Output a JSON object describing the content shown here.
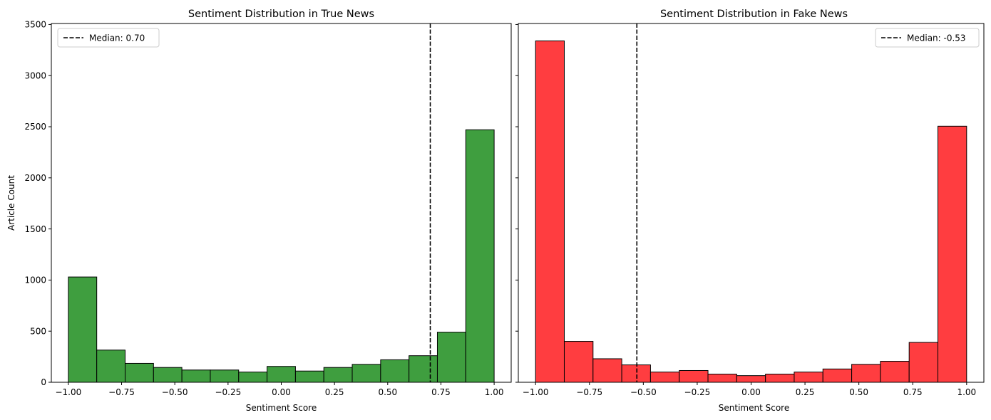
{
  "chart_data": [
    {
      "type": "bar",
      "title": "Sentiment Distribution in True News",
      "xlabel": "Sentiment Score",
      "ylabel": "Article Count",
      "xlim": [
        -1.08,
        1.08
      ],
      "ylim": [
        0,
        3510
      ],
      "bin_edges": [
        -1.0,
        -0.8667,
        -0.7333,
        -0.6,
        -0.4667,
        -0.3333,
        -0.2,
        -0.0667,
        0.0667,
        0.2,
        0.3333,
        0.4667,
        0.6,
        0.7333,
        0.8667,
        1.0
      ],
      "values": [
        1030,
        315,
        185,
        145,
        120,
        120,
        100,
        155,
        110,
        145,
        175,
        220,
        260,
        490,
        2470
      ],
      "bar_color": "#3f9e3f",
      "median": 0.7,
      "legend": {
        "label": "Median: 0.70",
        "position": "upper-left"
      },
      "xticks": [
        -1.0,
        -0.75,
        -0.5,
        -0.25,
        0.0,
        0.25,
        0.5,
        0.75,
        1.0
      ],
      "xtick_labels": [
        "−1.00",
        "−0.75",
        "−0.50",
        "−0.25",
        "0.00",
        "0.25",
        "0.50",
        "0.75",
        "1.00"
      ],
      "yticks": [
        0,
        500,
        1000,
        1500,
        2000,
        2500,
        3000,
        3500
      ],
      "ytick_labels": [
        "0",
        "500",
        "1000",
        "1500",
        "2000",
        "2500",
        "3000",
        "3500"
      ],
      "grid": false
    },
    {
      "type": "bar",
      "title": "Sentiment Distribution in Fake News",
      "xlabel": "Sentiment Score",
      "ylabel": "",
      "xlim": [
        -1.08,
        1.08
      ],
      "ylim": [
        0,
        3510
      ],
      "bin_edges": [
        -1.0,
        -0.8667,
        -0.7333,
        -0.6,
        -0.4667,
        -0.3333,
        -0.2,
        -0.0667,
        0.0667,
        0.2,
        0.3333,
        0.4667,
        0.6,
        0.7333,
        0.8667,
        1.0
      ],
      "values": [
        3340,
        400,
        230,
        170,
        100,
        115,
        80,
        65,
        80,
        100,
        130,
        175,
        205,
        390,
        2505
      ],
      "bar_color": "#ff3d40",
      "median": -0.53,
      "legend": {
        "label": "Median: -0.53",
        "position": "upper-right"
      },
      "xticks": [
        -1.0,
        -0.75,
        -0.5,
        -0.25,
        0.0,
        0.25,
        0.5,
        0.75,
        1.0
      ],
      "xtick_labels": [
        "−1.00",
        "−0.75",
        "−0.50",
        "−0.25",
        "0.00",
        "0.25",
        "0.50",
        "0.75",
        "1.00"
      ],
      "yticks": [
        0,
        500,
        1000,
        1500,
        2000,
        2500,
        3000,
        3500
      ],
      "ytick_labels": [],
      "grid": false
    }
  ]
}
